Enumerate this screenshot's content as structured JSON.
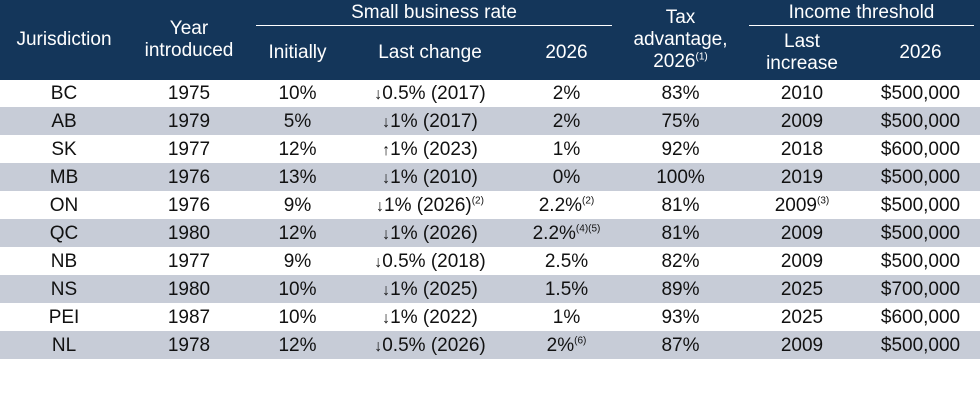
{
  "headers": {
    "jurisdiction": "Jurisdiction",
    "year_introduced": "Year introduced",
    "small_business_rate": "Small business rate",
    "initially": "Initially",
    "last_change": "Last change",
    "rate_2026": "2026",
    "tax_advantage": "Tax advantage,",
    "tax_advantage_year": "2026",
    "tax_advantage_note": "(1)",
    "income_threshold": "Income threshold",
    "last_increase": "Last increase",
    "threshold_2026": "2026"
  },
  "rows": [
    {
      "jurisdiction": "BC",
      "year": "1975",
      "initially": "10%",
      "arrow": "↓",
      "change": "0.5% (2017)",
      "change_note": "",
      "rate": "2%",
      "rate_note": "",
      "advantage": "83%",
      "last_increase": "2010",
      "increase_note": "",
      "threshold": "$500,000"
    },
    {
      "jurisdiction": "AB",
      "year": "1979",
      "initially": "5%",
      "arrow": "↓",
      "change": "1% (2017)",
      "change_note": "",
      "rate": "2%",
      "rate_note": "",
      "advantage": "75%",
      "last_increase": "2009",
      "increase_note": "",
      "threshold": "$500,000"
    },
    {
      "jurisdiction": "SK",
      "year": "1977",
      "initially": "12%",
      "arrow": "↑",
      "change": "1% (2023)",
      "change_note": "",
      "rate": "1%",
      "rate_note": "",
      "advantage": "92%",
      "last_increase": "2018",
      "increase_note": "",
      "threshold": "$600,000"
    },
    {
      "jurisdiction": "MB",
      "year": "1976",
      "initially": "13%",
      "arrow": "↓",
      "change": "1% (2010)",
      "change_note": "",
      "rate": "0%",
      "rate_note": "",
      "advantage": "100%",
      "last_increase": "2019",
      "increase_note": "",
      "threshold": "$500,000"
    },
    {
      "jurisdiction": "ON",
      "year": "1976",
      "initially": "9%",
      "arrow": "↓",
      "change": "1% (2026)",
      "change_note": "(2)",
      "rate": "2.2%",
      "rate_note": "(2)",
      "advantage": "81%",
      "last_increase": "2009",
      "increase_note": "(3)",
      "threshold": "$500,000"
    },
    {
      "jurisdiction": "QC",
      "year": "1980",
      "initially": "12%",
      "arrow": "↓",
      "change": "1% (2026)",
      "change_note": "",
      "rate": "2.2%",
      "rate_note": "(4)(5)",
      "advantage": "81%",
      "last_increase": "2009",
      "increase_note": "",
      "threshold": "$500,000"
    },
    {
      "jurisdiction": "NB",
      "year": "1977",
      "initially": "9%",
      "arrow": "↓",
      "change": "0.5% (2018)",
      "change_note": "",
      "rate": "2.5%",
      "rate_note": "",
      "advantage": "82%",
      "last_increase": "2009",
      "increase_note": "",
      "threshold": "$500,000"
    },
    {
      "jurisdiction": "NS",
      "year": "1980",
      "initially": "10%",
      "arrow": "↓",
      "change": "1% (2025)",
      "change_note": "",
      "rate": "1.5%",
      "rate_note": "",
      "advantage": "89%",
      "last_increase": "2025",
      "increase_note": "",
      "threshold": "$700,000"
    },
    {
      "jurisdiction": "PEI",
      "year": "1987",
      "initially": "10%",
      "arrow": "↓",
      "change": "1% (2022)",
      "change_note": "",
      "rate": "1%",
      "rate_note": "",
      "advantage": "93%",
      "last_increase": "2025",
      "increase_note": "",
      "threshold": "$600,000"
    },
    {
      "jurisdiction": "NL",
      "year": "1978",
      "initially": "12%",
      "arrow": "↓",
      "change": "0.5% (2026)",
      "change_note": "",
      "rate": "2%",
      "rate_note": "(6)",
      "advantage": "87%",
      "last_increase": "2009",
      "increase_note": "",
      "threshold": "$500,000"
    }
  ],
  "colors": {
    "header_bg": "#14365a",
    "header_text": "#ffffff",
    "stripe": "#c7ccd7",
    "body_text": "#111111"
  }
}
